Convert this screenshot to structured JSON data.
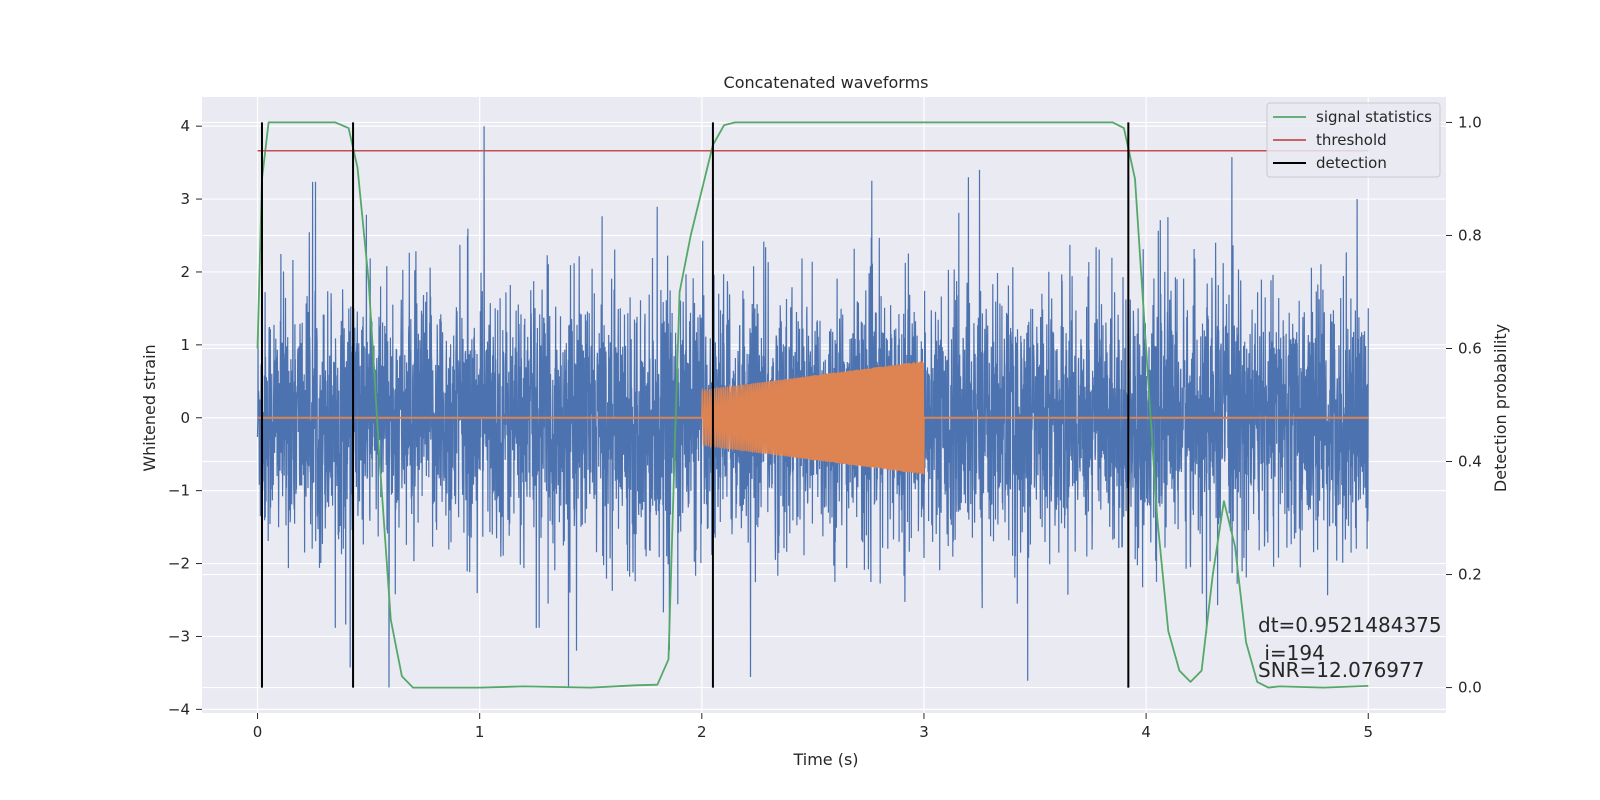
{
  "chart_data": {
    "type": "line",
    "title": "Concatenated waveforms",
    "xlabel": "Time (s)",
    "ylabel_left": "Whitened strain",
    "ylabel_right": "Detection probability",
    "xlim": [
      -0.25,
      5.35
    ],
    "ylim_left": [
      -4.05,
      4.4
    ],
    "ylim_right": [
      -0.045,
      1.045
    ],
    "x_ticks": [
      "0",
      "1",
      "2",
      "3",
      "4",
      "5"
    ],
    "y_ticks_left": [
      "4",
      "3",
      "2",
      "1",
      "0",
      "−1",
      "−2",
      "−3",
      "−4"
    ],
    "y_ticks_right": [
      "1.0",
      "0.8",
      "0.6",
      "0.4",
      "0.2",
      "0.0"
    ],
    "grid": true,
    "legend_position": "top-right",
    "colors": {
      "background": "#eaeaf2",
      "grid": "#ffffff",
      "strain": "#4c72b0",
      "injected_signal": "#dd8452",
      "signal_statistics": "#55a868",
      "threshold": "#c44e52",
      "detection": "#000000"
    },
    "series": [
      {
        "name": "signal statistics",
        "axis": "right",
        "x": [
          0.0,
          0.02,
          0.05,
          0.1,
          0.2,
          0.35,
          0.41,
          0.45,
          0.5,
          0.55,
          0.6,
          0.65,
          0.7,
          1.0,
          1.2,
          1.5,
          1.7,
          1.8,
          1.85,
          1.88,
          1.9,
          1.95,
          2.0,
          2.05,
          2.1,
          2.15,
          2.2,
          2.5,
          3.0,
          3.5,
          3.85,
          3.9,
          3.95,
          4.0,
          4.05,
          4.1,
          4.15,
          4.2,
          4.25,
          4.3,
          4.35,
          4.4,
          4.45,
          4.5,
          4.55,
          4.6,
          4.7,
          4.8,
          5.0
        ],
        "values": [
          0.6,
          0.9,
          1.0,
          1.0,
          1.0,
          1.0,
          0.99,
          0.92,
          0.72,
          0.4,
          0.12,
          0.02,
          0.0,
          0.0,
          0.002,
          0.0,
          0.004,
          0.005,
          0.05,
          0.45,
          0.7,
          0.8,
          0.88,
          0.96,
          0.995,
          1.0,
          1.0,
          1.0,
          1.0,
          1.0,
          1.0,
          0.99,
          0.9,
          0.6,
          0.3,
          0.1,
          0.03,
          0.01,
          0.03,
          0.2,
          0.33,
          0.25,
          0.08,
          0.01,
          0.0,
          0.002,
          0.001,
          0.0,
          0.003
        ]
      },
      {
        "name": "threshold",
        "axis": "right",
        "x": [
          0.0,
          5.0
        ],
        "values": [
          0.95,
          0.95
        ]
      },
      {
        "name": "detection",
        "axis": "right",
        "x": [
          0.02,
          0.43,
          2.05,
          3.92
        ],
        "ymin": 0.0,
        "ymax": 1.0
      }
    ],
    "strain_noise": {
      "x_range": [
        0.0,
        5.0
      ],
      "typical_amplitude": 1.0,
      "min": -3.7,
      "max": 4.0,
      "peaks": [
        {
          "x": 1.02,
          "value": 4.0
        },
        {
          "x": 1.4,
          "value": -3.7
        },
        {
          "x": 3.2,
          "value": 3.3
        },
        {
          "x": 3.25,
          "value": 3.4
        },
        {
          "x": 4.95,
          "value": 3.0
        }
      ]
    },
    "injected_signal": {
      "x_range": [
        2.0,
        3.0
      ],
      "amplitude_start": 0.38,
      "amplitude_end": 0.78
    },
    "annotations": [
      "dt=0.9521484375",
      " i=194",
      "SNR=12.076977"
    ]
  }
}
